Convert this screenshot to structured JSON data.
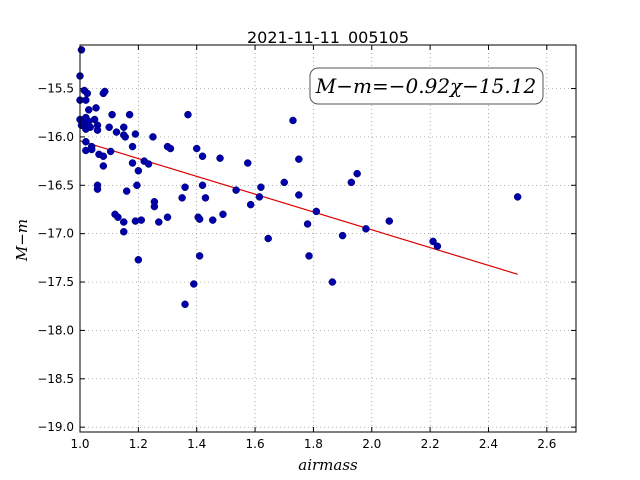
{
  "chart_data": {
    "type": "scatter",
    "title": "2021-11-11_005105",
    "xlabel": "airmass",
    "ylabel": "M−m",
    "annotation": "M−m=−0.92χ−15.12",
    "xlim": [
      1.0,
      2.7
    ],
    "ylim": [
      -19.05,
      -15.05
    ],
    "y_inverted": true,
    "grid": true,
    "xticks": [
      1.0,
      1.2,
      1.4,
      1.6,
      1.8,
      2.0,
      2.2,
      2.4,
      2.6
    ],
    "xtick_labels": [
      "1.0",
      "1.2",
      "1.4",
      "1.6",
      "1.8",
      "2.0",
      "2.2",
      "2.4",
      "2.6"
    ],
    "yticks": [
      -15.5,
      -16.0,
      -16.5,
      -17.0,
      -17.5,
      -18.0,
      -18.5,
      -19.0
    ],
    "ytick_labels": [
      "−15.5",
      "−16.0",
      "−16.5",
      "−17.0",
      "−17.5",
      "−18.0",
      "−18.5",
      "−19.0"
    ],
    "point_color": "#0000aa",
    "line_color": "#dd0000",
    "fit": {
      "slope": -0.92,
      "intercept": -15.12,
      "x_range": [
        1.0,
        2.5
      ]
    },
    "points": [
      [
        1.0,
        -15.37
      ],
      [
        1.005,
        -15.1
      ],
      [
        1.0,
        -15.62
      ],
      [
        1.0,
        -15.82
      ],
      [
        1.005,
        -15.88
      ],
      [
        1.01,
        -15.85
      ],
      [
        1.015,
        -15.82
      ],
      [
        1.02,
        -15.8
      ],
      [
        1.02,
        -15.92
      ],
      [
        1.02,
        -16.05
      ],
      [
        1.015,
        -15.52
      ],
      [
        1.02,
        -15.62
      ],
      [
        1.025,
        -15.55
      ],
      [
        1.025,
        -15.88
      ],
      [
        1.03,
        -15.72
      ],
      [
        1.03,
        -15.84
      ],
      [
        1.035,
        -15.9
      ],
      [
        1.04,
        -16.1
      ],
      [
        1.04,
        -16.13
      ],
      [
        1.02,
        -16.14
      ],
      [
        1.05,
        -15.82
      ],
      [
        1.055,
        -15.7
      ],
      [
        1.06,
        -15.88
      ],
      [
        1.06,
        -15.93
      ],
      [
        1.065,
        -16.18
      ],
      [
        1.06,
        -16.5
      ],
      [
        1.06,
        -16.54
      ],
      [
        1.08,
        -15.55
      ],
      [
        1.085,
        -15.53
      ],
      [
        1.08,
        -16.2
      ],
      [
        1.08,
        -16.3
      ],
      [
        1.1,
        -15.9
      ],
      [
        1.105,
        -16.15
      ],
      [
        1.11,
        -15.77
      ],
      [
        1.125,
        -15.95
      ],
      [
        1.12,
        -16.8
      ],
      [
        1.13,
        -16.83
      ],
      [
        1.15,
        -15.9
      ],
      [
        1.15,
        -15.98
      ],
      [
        1.155,
        -16.0
      ],
      [
        1.15,
        -16.88
      ],
      [
        1.15,
        -16.98
      ],
      [
        1.16,
        -16.56
      ],
      [
        1.17,
        -15.77
      ],
      [
        1.18,
        -16.27
      ],
      [
        1.18,
        -16.1
      ],
      [
        1.19,
        -15.97
      ],
      [
        1.19,
        -16.87
      ],
      [
        1.2,
        -16.35
      ],
      [
        1.195,
        -16.5
      ],
      [
        1.2,
        -17.27
      ],
      [
        1.21,
        -16.86
      ],
      [
        1.22,
        -16.25
      ],
      [
        1.235,
        -16.28
      ],
      [
        1.25,
        -16.0
      ],
      [
        1.255,
        -16.67
      ],
      [
        1.255,
        -16.72
      ],
      [
        1.27,
        -16.88
      ],
      [
        1.3,
        -16.1
      ],
      [
        1.31,
        -16.12
      ],
      [
        1.3,
        -16.83
      ],
      [
        1.35,
        -16.63
      ],
      [
        1.36,
        -16.52
      ],
      [
        1.37,
        -15.77
      ],
      [
        1.36,
        -17.73
      ],
      [
        1.39,
        -17.52
      ],
      [
        1.4,
        -16.12
      ],
      [
        1.405,
        -16.83
      ],
      [
        1.41,
        -16.85
      ],
      [
        1.41,
        -17.23
      ],
      [
        1.42,
        -16.2
      ],
      [
        1.42,
        -16.5
      ],
      [
        1.43,
        -16.63
      ],
      [
        1.455,
        -16.86
      ],
      [
        1.48,
        -16.22
      ],
      [
        1.49,
        -16.8
      ],
      [
        1.535,
        -16.55
      ],
      [
        1.575,
        -16.27
      ],
      [
        1.585,
        -16.7
      ],
      [
        1.615,
        -16.62
      ],
      [
        1.62,
        -16.52
      ],
      [
        1.645,
        -17.05
      ],
      [
        1.7,
        -16.47
      ],
      [
        1.73,
        -15.83
      ],
      [
        1.75,
        -16.23
      ],
      [
        1.75,
        -16.6
      ],
      [
        1.78,
        -16.9
      ],
      [
        1.785,
        -17.23
      ],
      [
        1.81,
        -16.77
      ],
      [
        1.865,
        -17.5
      ],
      [
        1.9,
        -17.02
      ],
      [
        1.93,
        -16.47
      ],
      [
        1.95,
        -16.38
      ],
      [
        1.98,
        -16.95
      ],
      [
        2.06,
        -16.87
      ],
      [
        2.21,
        -17.08
      ],
      [
        2.225,
        -17.13
      ],
      [
        2.5,
        -16.62
      ]
    ]
  }
}
